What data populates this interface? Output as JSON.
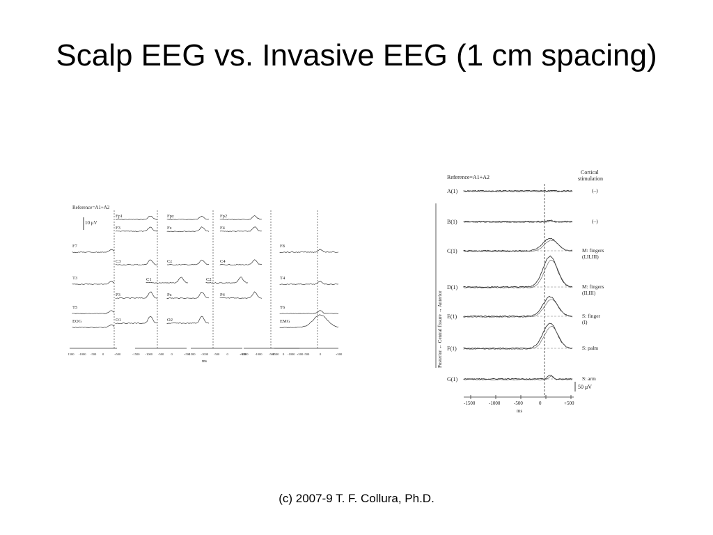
{
  "slide": {
    "title": "Scalp EEG vs. Invasive EEG (1 cm spacing)",
    "footer": "(c) 2007-9 T. F. Collura, Ph.D."
  },
  "scalp_figure": {
    "reference": "Reference=A1+A2",
    "scale": "10 μV",
    "unit": "ms",
    "left_labels": [
      "F7",
      "T3",
      "T5",
      "EOG"
    ],
    "right_labels": [
      "F8",
      "T4",
      "T6",
      "EMG"
    ],
    "grid_labels": [
      [
        "Fp1",
        "Fpz",
        "Fp2"
      ],
      [
        "F3",
        "Fz",
        "F4"
      ],
      [
        "C3",
        "Cz",
        "C4"
      ],
      [
        "C1",
        "C2"
      ],
      [
        "P3",
        "Pz",
        "P4"
      ],
      [
        "O1",
        "O2"
      ]
    ],
    "time_ticks": [
      "-1500",
      "-1000",
      "-500",
      "0",
      "+500"
    ]
  },
  "invasive_figure": {
    "reference": "Reference=A1+A2",
    "stim_header": "Cortical stimulation",
    "unit": "ms",
    "scale": "50 μV",
    "axis_note": "Posterior ← Central fissure → Anterior",
    "channels": [
      {
        "label": "A(1)",
        "stim": "(–)"
      },
      {
        "label": "B(1)",
        "stim": "(–)"
      },
      {
        "label": "C(1)",
        "stim": "M: fingers (I,II,III)"
      },
      {
        "label": "D(1)",
        "stim": "M: fingers (II,III)"
      },
      {
        "label": "E(1)",
        "stim": "S: finger (I)"
      },
      {
        "label": "F(1)",
        "stim": "S: palm"
      },
      {
        "label": "G(1)",
        "stim": "S: arm"
      }
    ],
    "time_ticks": [
      "-1500",
      "-1000",
      "-500",
      "0",
      "+500"
    ]
  },
  "colors": {
    "background": "#ffffff",
    "text": "#000000",
    "trace": "#333333"
  }
}
